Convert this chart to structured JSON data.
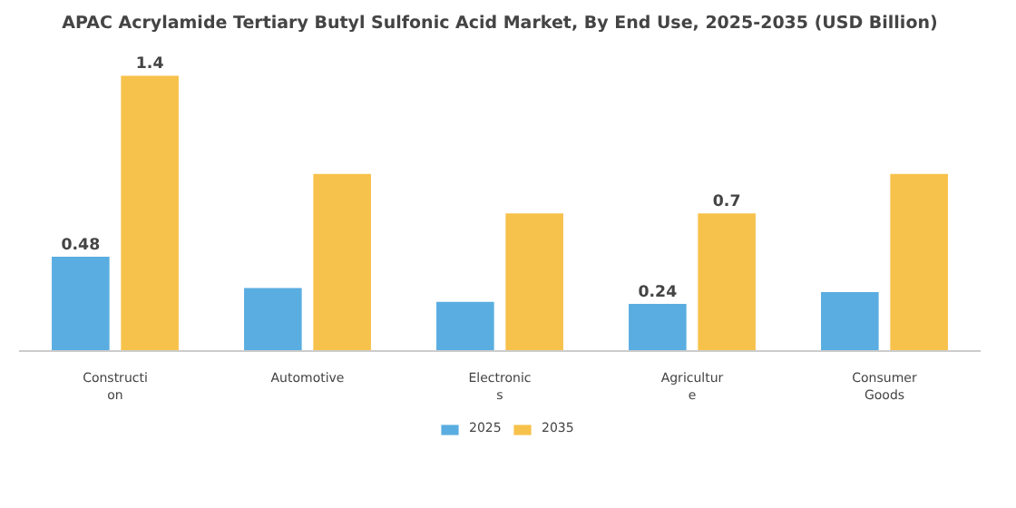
{
  "chart_data": {
    "type": "bar",
    "title": "APAC Acrylamide Tertiary Butyl Sulfonic Acid Market, By End Use, 2025-2035 (USD Billion)",
    "categories": [
      "Constructi\non",
      "Automotive",
      "Electronic\ns",
      "Agricultur\ne",
      "Consumer\nGoods"
    ],
    "series": [
      {
        "name": "2025",
        "color": "#5aade0",
        "values": [
          0.48,
          0.32,
          0.25,
          0.24,
          0.3
        ],
        "value_labels": [
          "0.48",
          null,
          null,
          "0.24",
          null
        ]
      },
      {
        "name": "2035",
        "color": "#f7c24b",
        "values": [
          1.4,
          0.9,
          0.7,
          0.7,
          0.9
        ],
        "value_labels": [
          "1.4",
          null,
          null,
          "0.7",
          null
        ]
      }
    ],
    "legend": "bottom"
  }
}
